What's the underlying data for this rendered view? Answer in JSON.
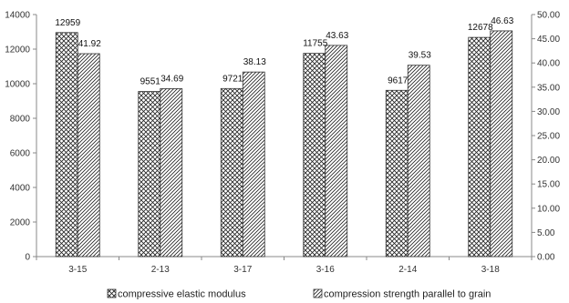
{
  "chart_data": {
    "type": "bar",
    "categories": [
      "3-15",
      "2-13",
      "3-17",
      "3-16",
      "2-14",
      "3-18"
    ],
    "series": [
      {
        "name": "compressive elastic modulus",
        "axis": "left",
        "values": [
          12959,
          9551,
          9721,
          11755,
          9617,
          12678
        ],
        "labels": [
          "12959",
          "9551",
          "9721",
          "11755",
          "9617",
          "12678"
        ]
      },
      {
        "name": "compression strength parallel to grain",
        "axis": "right",
        "values": [
          41.92,
          34.69,
          38.13,
          43.63,
          39.53,
          46.63
        ],
        "labels": [
          "41.92",
          "34.69",
          "38.13",
          "43.63",
          "39.53",
          "46.63"
        ]
      }
    ],
    "y_left": {
      "lim": [
        0,
        14000
      ],
      "ticks": [
        "0",
        "2000",
        "4000",
        "6000",
        "8000",
        "10000",
        "12000",
        "14000"
      ]
    },
    "y_right": {
      "lim": [
        0,
        50
      ],
      "ticks": [
        "0.00",
        "5.00",
        "10.00",
        "15.00",
        "20.00",
        "25.00",
        "30.00",
        "35.00",
        "40.00",
        "45.00",
        "50.00"
      ]
    },
    "grid": false,
    "legend_position": "bottom",
    "title": "",
    "xlabel": "",
    "ylabel": ""
  }
}
